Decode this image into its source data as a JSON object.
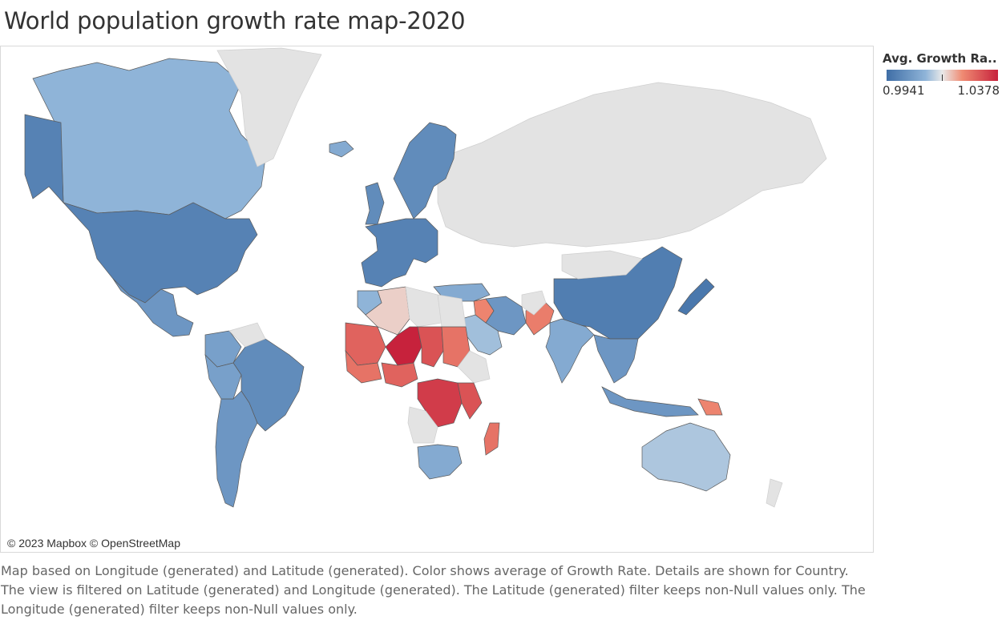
{
  "title": "World population growth rate map-2020",
  "legend": {
    "title": "Avg. Growth Ra..",
    "min_label": "0.9941",
    "max_label": "1.0378",
    "colors": {
      "low": "#3f6ea6",
      "midlow": "#8fb4d8",
      "mid": "#e9e9e9",
      "midhigh": "#ef8a72",
      "high": "#c7223c"
    }
  },
  "attribution": "© 2023 Mapbox © OpenStreetMap",
  "caption": "Map based on Longitude (generated) and Latitude (generated).  Color shows average of Growth Rate.  Details are shown for Country. The view is filtered on Latitude (generated) and Longitude (generated). The Latitude (generated) filter keeps non-Null values only. The Longitude (generated) filter keeps non-Null values only.",
  "map": {
    "land_color": "#e3e3e3",
    "no_data_color": "#e3e3e3",
    "countries": [
      {
        "name": "Canada",
        "level": 0.35
      },
      {
        "name": "USA",
        "level": 0.1
      },
      {
        "name": "Greenland",
        "level": -1
      },
      {
        "name": "Alaska",
        "level": 0.1
      },
      {
        "name": "Mexico",
        "level": 0.2
      },
      {
        "name": "Brazil",
        "level": 0.15
      },
      {
        "name": "Argentina",
        "level": 0.2
      },
      {
        "name": "Peru",
        "level": 0.25
      },
      {
        "name": "Colombia",
        "level": 0.25
      },
      {
        "name": "Venezuela",
        "level": -1
      },
      {
        "name": "Russia",
        "level": -1
      },
      {
        "name": "China",
        "level": 0.08
      },
      {
        "name": "Mongolia",
        "level": -1
      },
      {
        "name": "India",
        "level": 0.3
      },
      {
        "name": "Pakistan",
        "level": 0.72
      },
      {
        "name": "Afghanistan",
        "level": -1
      },
      {
        "name": "Iran",
        "level": 0.2
      },
      {
        "name": "Saudi Arabia",
        "level": 0.38
      },
      {
        "name": "Iraq",
        "level": 0.7
      },
      {
        "name": "Turkey",
        "level": 0.3
      },
      {
        "name": "Europe West",
        "level": 0.1
      },
      {
        "name": "Scandinavia",
        "level": 0.15
      },
      {
        "name": "UK",
        "level": 0.15
      },
      {
        "name": "Iceland",
        "level": 0.3
      },
      {
        "name": "Algeria",
        "level": 0.55
      },
      {
        "name": "Libya",
        "level": -1
      },
      {
        "name": "Egypt",
        "level": -1
      },
      {
        "name": "Morocco",
        "level": 0.35
      },
      {
        "name": "Mali",
        "level": 0.8
      },
      {
        "name": "Niger",
        "level": 1.0
      },
      {
        "name": "Chad",
        "level": 0.85
      },
      {
        "name": "Sudan",
        "level": 0.75
      },
      {
        "name": "Ethiopia",
        "level": -1
      },
      {
        "name": "Nigeria",
        "level": 0.8
      },
      {
        "name": "West Africa",
        "level": 0.75
      },
      {
        "name": "DR Congo",
        "level": 0.92
      },
      {
        "name": "East Africa",
        "level": 0.85
      },
      {
        "name": "Angola",
        "level": -1
      },
      {
        "name": "South Africa",
        "level": 0.3
      },
      {
        "name": "Madagascar",
        "level": 0.75
      },
      {
        "name": "Southeast Asia",
        "level": 0.2
      },
      {
        "name": "Indonesia",
        "level": 0.2
      },
      {
        "name": "Japan",
        "level": 0.05
      },
      {
        "name": "Australia",
        "level": 0.4
      },
      {
        "name": "Papua New Guinea",
        "level": 0.7
      },
      {
        "name": "New Zealand",
        "level": -1
      }
    ]
  }
}
